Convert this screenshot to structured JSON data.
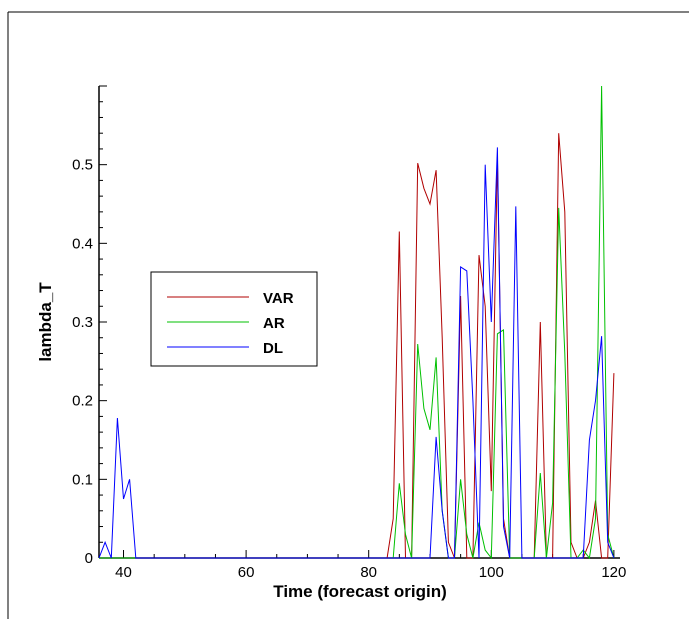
{
  "chart_data": {
    "type": "line",
    "title": "",
    "xlabel": "Time (forecast origin)",
    "ylabel": "lambda_T",
    "xlim": [
      36,
      121
    ],
    "ylim": [
      0,
      0.6
    ],
    "x_ticks": [
      40,
      60,
      80,
      100,
      120
    ],
    "y_ticks": [
      0,
      0.1,
      0.2,
      0.3,
      0.4,
      0.5
    ],
    "x_tick_labels": [
      "40",
      "60",
      "80",
      "100",
      "120"
    ],
    "y_tick_labels": [
      "0",
      "0.1",
      "0.2",
      "0.3",
      "0.4",
      "0.5"
    ],
    "grid": false,
    "legend_position": "middle-left",
    "series": [
      {
        "name": "VAR",
        "color": "#b00000",
        "x": [
          36,
          83,
          84,
          85,
          86,
          87,
          88,
          89,
          90,
          91,
          92,
          93,
          94,
          95,
          96,
          97,
          98,
          99,
          100,
          101,
          102,
          103,
          104,
          105,
          106,
          107,
          108,
          109,
          110,
          111,
          112,
          113,
          114,
          115,
          116,
          117,
          118,
          119,
          120
        ],
        "y": [
          0,
          0,
          0.05,
          0.415,
          0,
          0,
          0.502,
          0.47,
          0.45,
          0.493,
          0.28,
          0.02,
          0,
          0.333,
          0,
          0,
          0.385,
          0.32,
          0.085,
          0.51,
          0.05,
          0,
          0,
          0,
          0,
          0,
          0.3,
          0,
          0,
          0.54,
          0.44,
          0.02,
          0,
          0,
          0.02,
          0.073,
          0,
          0,
          0.235
        ]
      },
      {
        "name": "AR",
        "color": "#00c000",
        "x": [
          36,
          84,
          85,
          86,
          87,
          88,
          89,
          90,
          91,
          92,
          93,
          94,
          95,
          96,
          97,
          98,
          99,
          100,
          101,
          102,
          103,
          104,
          105,
          106,
          107,
          108,
          109,
          110,
          111,
          112,
          113,
          114,
          115,
          116,
          117,
          118,
          119,
          120
        ],
        "y": [
          0,
          0,
          0.095,
          0.03,
          0,
          0.272,
          0.19,
          0.163,
          0.255,
          0.06,
          0,
          0,
          0.1,
          0.03,
          0,
          0.045,
          0.01,
          0,
          0.285,
          0.29,
          0,
          0,
          0,
          0,
          0,
          0.108,
          0,
          0.07,
          0.445,
          0.26,
          0,
          0,
          0.01,
          0,
          0.05,
          0.6,
          0.03,
          0
        ]
      },
      {
        "name": "DL",
        "color": "#0000ff",
        "x": [
          36,
          37,
          38,
          39,
          40,
          41,
          42,
          43,
          90,
          91,
          92,
          93,
          94,
          95,
          96,
          97,
          98,
          99,
          100,
          101,
          102,
          103,
          104,
          105,
          106,
          107,
          108,
          109,
          110,
          111,
          112,
          113,
          114,
          115,
          116,
          117,
          118,
          119,
          120
        ],
        "y": [
          0,
          0.02,
          0,
          0.178,
          0.075,
          0.1,
          0,
          0,
          0,
          0.154,
          0.06,
          0,
          0,
          0.37,
          0.365,
          0.2,
          0,
          0.5,
          0.3,
          0.522,
          0.04,
          0,
          0.447,
          0,
          0,
          0,
          0,
          0,
          0,
          0,
          0,
          0,
          0,
          0,
          0.15,
          0.2,
          0.282,
          0.02,
          0
        ]
      }
    ]
  }
}
